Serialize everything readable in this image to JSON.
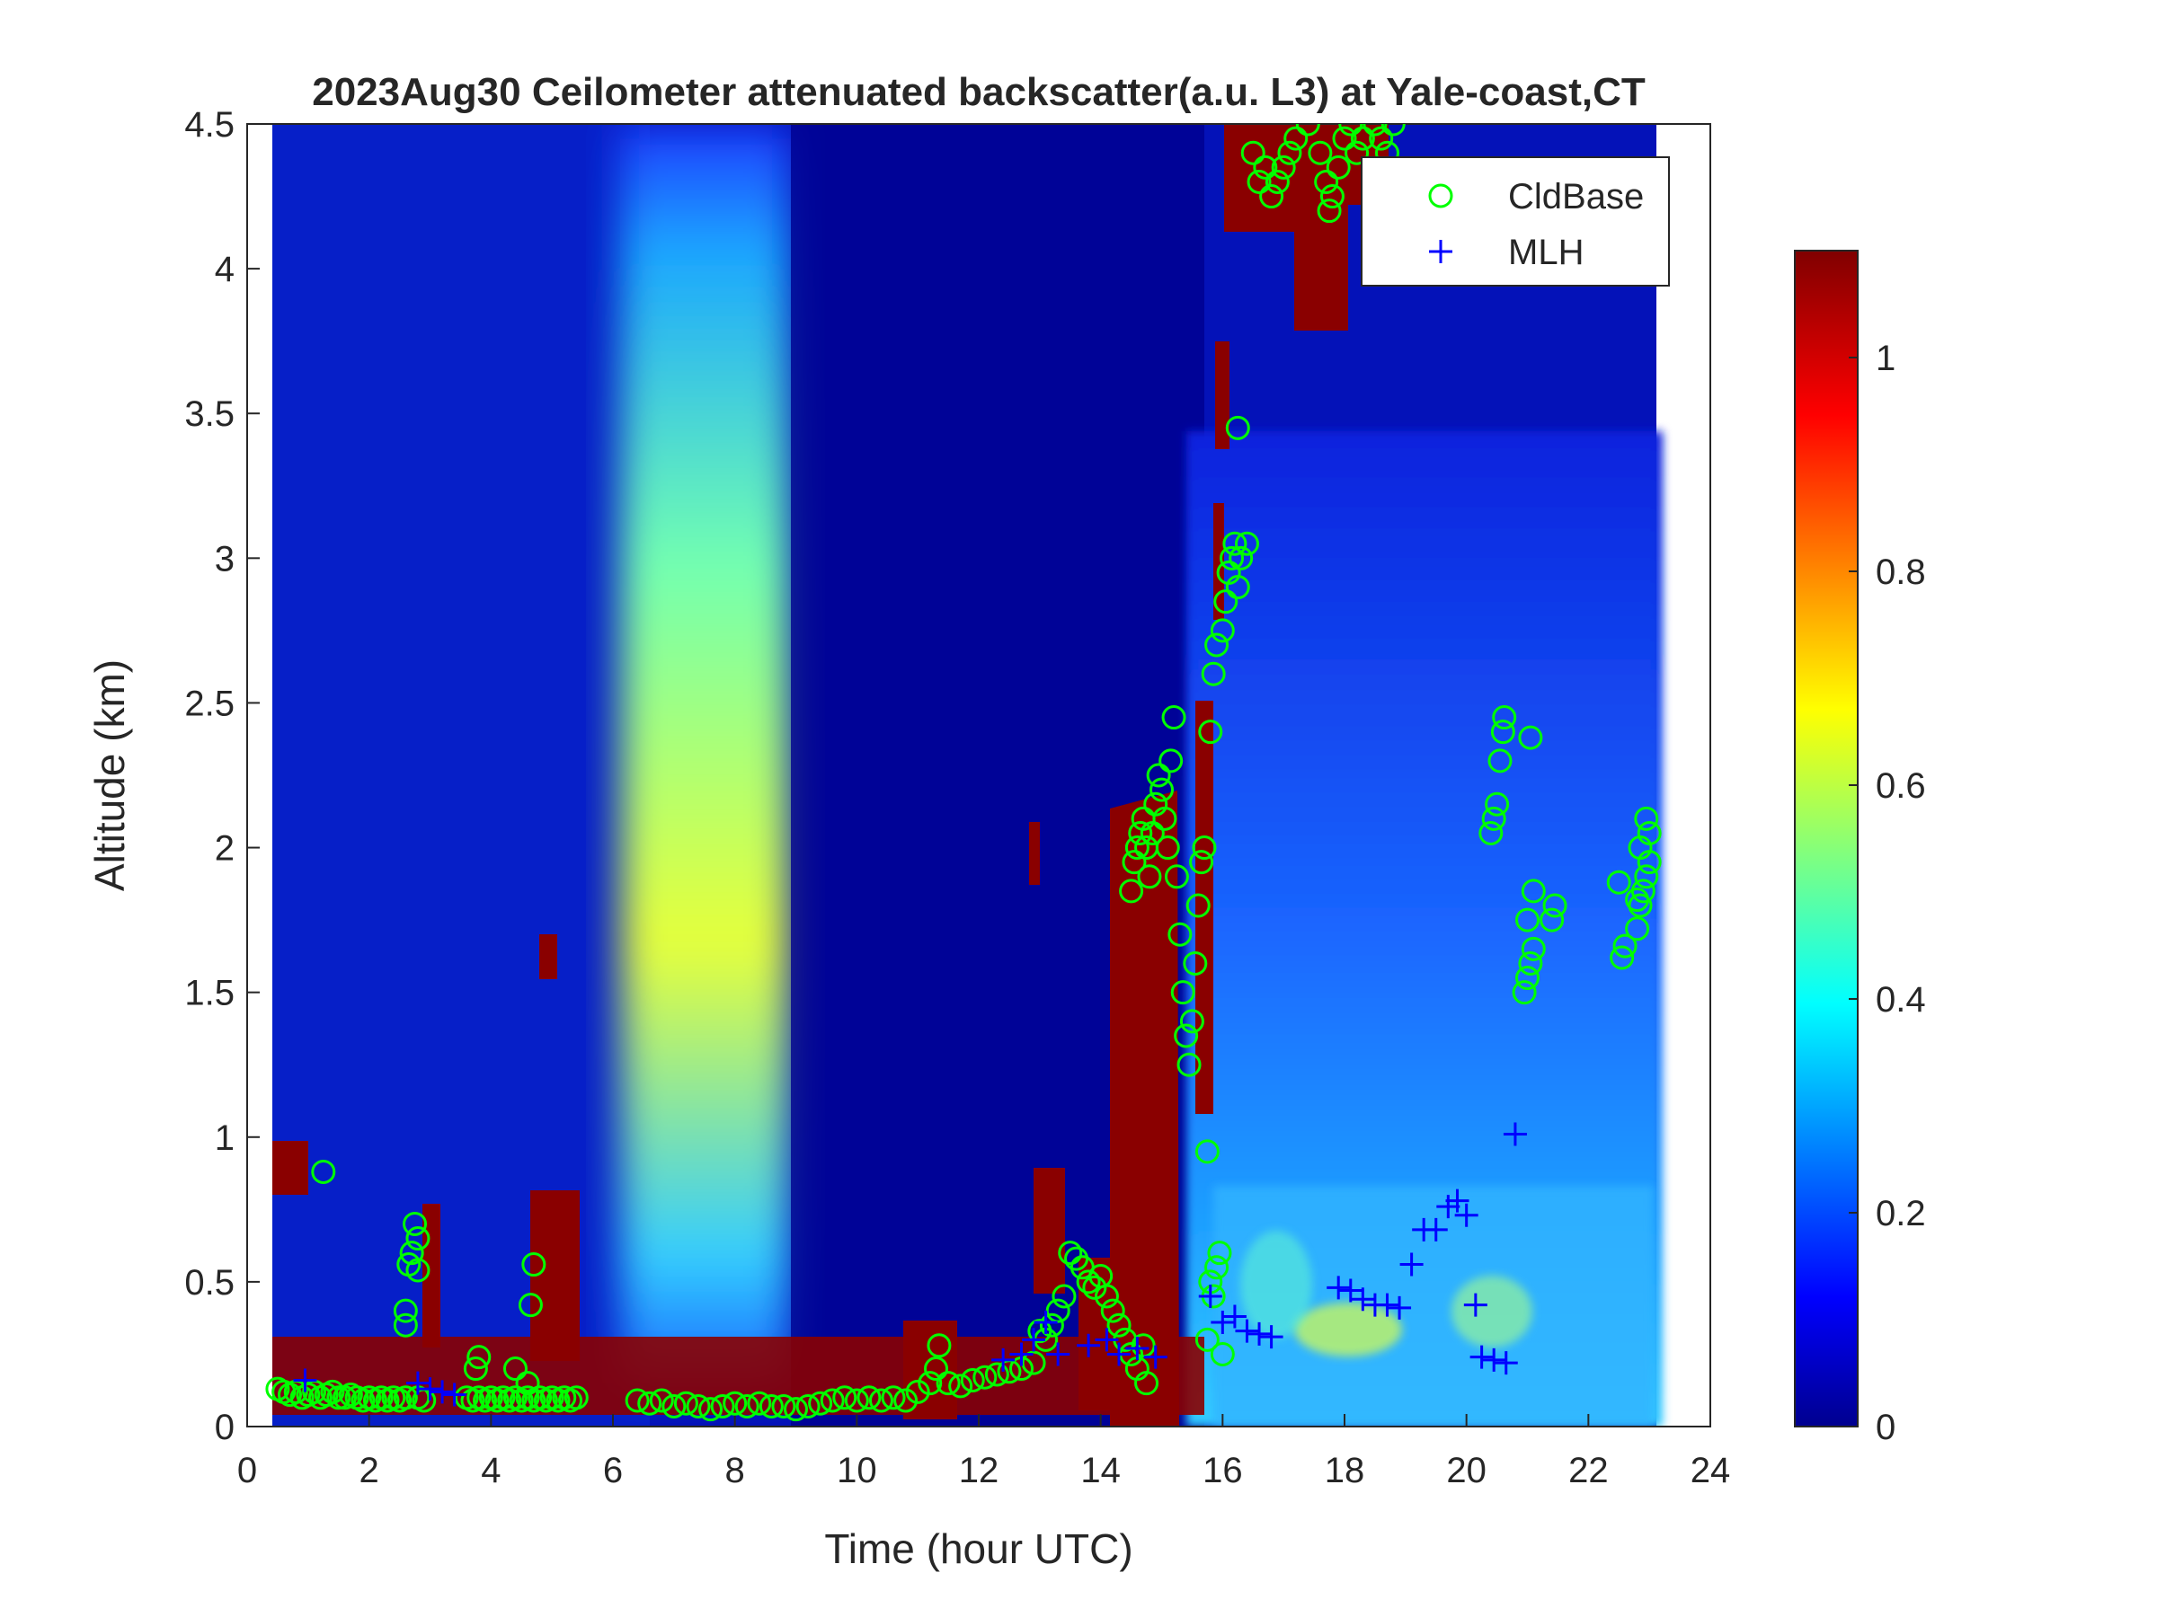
{
  "chart_data": {
    "type": "heatmap",
    "title": "2023Aug30 Ceilometer attenuated backscatter(a.u. L3) at Yale-coast,CT",
    "xlabel": "Time (hour UTC)",
    "ylabel": "Altitude (km)",
    "xlim": [
      0,
      24
    ],
    "ylim": [
      0,
      4.5
    ],
    "x_ticks": [
      "0",
      "2",
      "4",
      "6",
      "8",
      "10",
      "12",
      "14",
      "16",
      "18",
      "20",
      "22",
      "24"
    ],
    "y_ticks": [
      "0",
      "0.5",
      "1",
      "1.5",
      "2",
      "2.5",
      "3",
      "3.5",
      "4",
      "4.5"
    ],
    "colorbar": {
      "colormap": "jet",
      "clim": [
        0,
        1.1
      ],
      "ticks": [
        "0",
        "0.2",
        "0.4",
        "0.6",
        "0.8",
        "1"
      ]
    },
    "legend": {
      "position": "top-right",
      "entries": [
        {
          "label": "CldBase",
          "marker": "circle",
          "color": "#00ff00"
        },
        {
          "label": "MLH",
          "marker": "plus",
          "color": "#0000ff"
        }
      ]
    },
    "data_time_range": [
      0.45,
      23.2
    ],
    "series": [
      {
        "name": "CldBase",
        "points": [
          [
            0.5,
            0.13
          ],
          [
            0.6,
            0.12
          ],
          [
            0.7,
            0.11
          ],
          [
            0.8,
            0.12
          ],
          [
            0.9,
            0.1
          ],
          [
            1.0,
            0.11
          ],
          [
            1.1,
            0.12
          ],
          [
            1.2,
            0.1
          ],
          [
            1.3,
            0.11
          ],
          [
            1.4,
            0.12
          ],
          [
            1.5,
            0.1
          ],
          [
            1.6,
            0.1
          ],
          [
            1.7,
            0.11
          ],
          [
            1.8,
            0.1
          ],
          [
            1.9,
            0.09
          ],
          [
            2.0,
            0.1
          ],
          [
            2.1,
            0.09
          ],
          [
            2.2,
            0.1
          ],
          [
            2.3,
            0.09
          ],
          [
            2.4,
            0.1
          ],
          [
            2.5,
            0.09
          ],
          [
            2.6,
            0.1
          ],
          [
            2.8,
            0.1
          ],
          [
            2.9,
            0.09
          ],
          [
            1.25,
            0.88
          ],
          [
            2.6,
            0.35
          ],
          [
            2.6,
            0.4
          ],
          [
            2.65,
            0.56
          ],
          [
            2.7,
            0.6
          ],
          [
            2.75,
            0.7
          ],
          [
            2.8,
            0.65
          ],
          [
            2.8,
            0.54
          ],
          [
            3.6,
            0.1
          ],
          [
            3.7,
            0.09
          ],
          [
            3.8,
            0.1
          ],
          [
            3.9,
            0.09
          ],
          [
            4.0,
            0.1
          ],
          [
            4.1,
            0.09
          ],
          [
            4.2,
            0.1
          ],
          [
            4.3,
            0.09
          ],
          [
            4.4,
            0.1
          ],
          [
            4.5,
            0.09
          ],
          [
            4.6,
            0.1
          ],
          [
            4.7,
            0.09
          ],
          [
            4.8,
            0.1
          ],
          [
            4.9,
            0.09
          ],
          [
            5.0,
            0.1
          ],
          [
            5.1,
            0.09
          ],
          [
            5.2,
            0.1
          ],
          [
            5.3,
            0.09
          ],
          [
            5.4,
            0.1
          ],
          [
            3.75,
            0.2
          ],
          [
            3.8,
            0.24
          ],
          [
            4.4,
            0.2
          ],
          [
            4.6,
            0.15
          ],
          [
            4.65,
            0.42
          ],
          [
            4.7,
            0.56
          ],
          [
            6.4,
            0.09
          ],
          [
            6.6,
            0.08
          ],
          [
            6.8,
            0.09
          ],
          [
            7.0,
            0.07
          ],
          [
            7.2,
            0.08
          ],
          [
            7.4,
            0.07
          ],
          [
            7.6,
            0.06
          ],
          [
            7.8,
            0.07
          ],
          [
            8.0,
            0.08
          ],
          [
            8.2,
            0.07
          ],
          [
            8.4,
            0.08
          ],
          [
            8.6,
            0.07
          ],
          [
            8.8,
            0.07
          ],
          [
            9.0,
            0.06
          ],
          [
            9.2,
            0.07
          ],
          [
            9.4,
            0.08
          ],
          [
            9.6,
            0.09
          ],
          [
            9.8,
            0.1
          ],
          [
            10.0,
            0.09
          ],
          [
            10.2,
            0.1
          ],
          [
            10.4,
            0.09
          ],
          [
            10.6,
            0.1
          ],
          [
            10.8,
            0.09
          ],
          [
            11.0,
            0.12
          ],
          [
            11.2,
            0.15
          ],
          [
            11.3,
            0.2
          ],
          [
            11.35,
            0.28
          ],
          [
            11.5,
            0.15
          ],
          [
            11.7,
            0.14
          ],
          [
            11.9,
            0.16
          ],
          [
            12.1,
            0.17
          ],
          [
            12.3,
            0.18
          ],
          [
            12.5,
            0.19
          ],
          [
            12.7,
            0.2
          ],
          [
            12.9,
            0.22
          ],
          [
            13.0,
            0.33
          ],
          [
            13.1,
            0.3
          ],
          [
            13.2,
            0.35
          ],
          [
            13.3,
            0.4
          ],
          [
            13.4,
            0.45
          ],
          [
            13.5,
            0.6
          ],
          [
            13.6,
            0.58
          ],
          [
            13.7,
            0.55
          ],
          [
            13.8,
            0.5
          ],
          [
            13.9,
            0.48
          ],
          [
            14.0,
            0.52
          ],
          [
            14.1,
            0.45
          ],
          [
            14.2,
            0.4
          ],
          [
            14.3,
            0.35
          ],
          [
            14.4,
            0.3
          ],
          [
            14.5,
            0.25
          ],
          [
            14.6,
            0.2
          ],
          [
            14.7,
            0.28
          ],
          [
            14.75,
            0.15
          ],
          [
            14.5,
            1.85
          ],
          [
            14.55,
            1.95
          ],
          [
            14.6,
            2.0
          ],
          [
            14.65,
            2.05
          ],
          [
            14.7,
            2.1
          ],
          [
            14.75,
            2.0
          ],
          [
            14.8,
            1.9
          ],
          [
            14.85,
            2.05
          ],
          [
            14.9,
            2.15
          ],
          [
            14.95,
            2.25
          ],
          [
            15.0,
            2.2
          ],
          [
            15.05,
            2.1
          ],
          [
            15.1,
            2.0
          ],
          [
            15.15,
            2.3
          ],
          [
            15.2,
            2.45
          ],
          [
            15.25,
            1.9
          ],
          [
            15.3,
            1.7
          ],
          [
            15.35,
            1.5
          ],
          [
            15.4,
            1.35
          ],
          [
            15.45,
            1.25
          ],
          [
            15.5,
            1.4
          ],
          [
            15.55,
            1.6
          ],
          [
            15.6,
            1.8
          ],
          [
            15.65,
            1.95
          ],
          [
            15.7,
            2.0
          ],
          [
            15.75,
            0.95
          ],
          [
            15.75,
            0.3
          ],
          [
            15.8,
            0.5
          ],
          [
            15.85,
            0.45
          ],
          [
            15.9,
            0.55
          ],
          [
            15.95,
            0.6
          ],
          [
            16.0,
            0.25
          ],
          [
            15.8,
            2.4
          ],
          [
            15.85,
            2.6
          ],
          [
            15.9,
            2.7
          ],
          [
            16.0,
            2.75
          ],
          [
            16.05,
            2.85
          ],
          [
            16.1,
            2.95
          ],
          [
            16.15,
            3.0
          ],
          [
            16.2,
            3.05
          ],
          [
            16.25,
            2.9
          ],
          [
            16.3,
            3.0
          ],
          [
            16.4,
            3.05
          ],
          [
            16.25,
            3.45
          ],
          [
            16.5,
            4.4
          ],
          [
            16.6,
            4.3
          ],
          [
            16.7,
            4.35
          ],
          [
            16.8,
            4.25
          ],
          [
            16.9,
            4.3
          ],
          [
            17.0,
            4.35
          ],
          [
            17.1,
            4.4
          ],
          [
            17.2,
            4.45
          ],
          [
            17.4,
            4.5
          ],
          [
            17.6,
            4.4
          ],
          [
            17.7,
            4.3
          ],
          [
            17.75,
            4.2
          ],
          [
            17.8,
            4.25
          ],
          [
            17.9,
            4.35
          ],
          [
            18.0,
            4.45
          ],
          [
            18.1,
            4.5
          ],
          [
            18.2,
            4.4
          ],
          [
            18.3,
            4.45
          ],
          [
            18.5,
            4.5
          ],
          [
            18.6,
            4.45
          ],
          [
            18.7,
            4.4
          ],
          [
            18.8,
            4.5
          ],
          [
            20.4,
            2.05
          ],
          [
            20.45,
            2.1
          ],
          [
            20.5,
            2.15
          ],
          [
            20.55,
            2.3
          ],
          [
            20.6,
            2.4
          ],
          [
            20.62,
            2.45
          ],
          [
            20.95,
            1.5
          ],
          [
            21.0,
            1.55
          ],
          [
            21.05,
            1.6
          ],
          [
            21.1,
            1.65
          ],
          [
            21.1,
            1.85
          ],
          [
            21.0,
            1.75
          ],
          [
            21.05,
            2.38
          ],
          [
            21.4,
            1.75
          ],
          [
            21.45,
            1.8
          ],
          [
            22.5,
            1.88
          ],
          [
            22.55,
            1.62
          ],
          [
            22.6,
            1.66
          ],
          [
            22.8,
            1.72
          ],
          [
            22.85,
            1.8
          ],
          [
            22.9,
            1.85
          ],
          [
            22.95,
            1.9
          ],
          [
            23.0,
            1.95
          ],
          [
            23.0,
            2.05
          ],
          [
            22.95,
            2.1
          ],
          [
            22.85,
            2.0
          ],
          [
            22.8,
            1.82
          ]
        ]
      },
      {
        "name": "MLH",
        "points": [
          [
            0.95,
            0.16
          ],
          [
            2.8,
            0.15
          ],
          [
            3.0,
            0.13
          ],
          [
            3.2,
            0.12
          ],
          [
            3.4,
            0.11
          ],
          [
            12.4,
            0.23
          ],
          [
            12.7,
            0.25
          ],
          [
            12.9,
            0.3
          ],
          [
            13.1,
            0.36
          ],
          [
            13.3,
            0.25
          ],
          [
            13.8,
            0.28
          ],
          [
            14.1,
            0.3
          ],
          [
            14.3,
            0.25
          ],
          [
            14.6,
            0.27
          ],
          [
            14.9,
            0.24
          ],
          [
            15.8,
            0.45
          ],
          [
            16.0,
            0.36
          ],
          [
            16.2,
            0.38
          ],
          [
            16.4,
            0.33
          ],
          [
            16.6,
            0.32
          ],
          [
            16.8,
            0.31
          ],
          [
            17.9,
            0.48
          ],
          [
            18.1,
            0.47
          ],
          [
            18.3,
            0.44
          ],
          [
            18.5,
            0.42
          ],
          [
            18.7,
            0.42
          ],
          [
            18.9,
            0.41
          ],
          [
            19.1,
            0.56
          ],
          [
            19.3,
            0.68
          ],
          [
            19.5,
            0.68
          ],
          [
            19.7,
            0.76
          ],
          [
            19.85,
            0.78
          ],
          [
            20.0,
            0.73
          ],
          [
            20.15,
            0.42
          ],
          [
            20.25,
            0.24
          ],
          [
            20.45,
            0.23
          ],
          [
            20.65,
            0.22
          ],
          [
            20.8,
            1.01
          ]
        ]
      }
    ]
  }
}
